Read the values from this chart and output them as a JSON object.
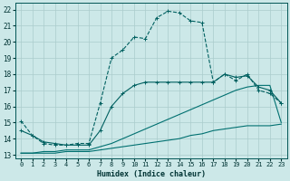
{
  "xlabel": "Humidex (Indice chaleur)",
  "background_color": "#cce8e8",
  "grid_color": "#aacccc",
  "line_color_dark": "#006060",
  "line_color_mid": "#007070",
  "xlim": [
    -0.5,
    23.5
  ],
  "ylim": [
    12.8,
    22.4
  ],
  "xticks": [
    0,
    1,
    2,
    3,
    4,
    5,
    6,
    7,
    8,
    9,
    10,
    11,
    12,
    13,
    14,
    15,
    16,
    17,
    18,
    19,
    20,
    21,
    22,
    23
  ],
  "yticks": [
    13,
    14,
    15,
    16,
    17,
    18,
    19,
    20,
    21,
    22
  ],
  "curve1_x": [
    0,
    1,
    2,
    3,
    4,
    5,
    6,
    7,
    8,
    9,
    10,
    11,
    12,
    13,
    14,
    15,
    16,
    17,
    18,
    19,
    20,
    21,
    22,
    23
  ],
  "curve1_y": [
    15.1,
    14.2,
    13.7,
    13.6,
    13.6,
    13.7,
    13.7,
    16.2,
    19.0,
    19.5,
    20.3,
    20.2,
    21.5,
    21.9,
    21.8,
    21.3,
    21.2,
    17.5,
    18.0,
    17.6,
    18.0,
    17.0,
    16.8,
    16.2
  ],
  "curve2_x": [
    0,
    1,
    2,
    3,
    4,
    5,
    6,
    7,
    8,
    9,
    10,
    11,
    12,
    13,
    14,
    15,
    16,
    17,
    18,
    19,
    20,
    21,
    22,
    23
  ],
  "curve2_y": [
    14.5,
    14.2,
    13.8,
    13.7,
    13.6,
    13.6,
    13.6,
    14.5,
    16.0,
    16.8,
    17.3,
    17.5,
    17.5,
    17.5,
    17.5,
    17.5,
    17.5,
    17.5,
    18.0,
    17.8,
    17.9,
    17.2,
    17.0,
    16.2
  ],
  "curve3_x": [
    0,
    1,
    2,
    3,
    4,
    5,
    6,
    7,
    8,
    9,
    10,
    11,
    12,
    13,
    14,
    15,
    16,
    17,
    18,
    19,
    20,
    21,
    22,
    23
  ],
  "curve3_y": [
    13.1,
    13.1,
    13.2,
    13.2,
    13.3,
    13.3,
    13.3,
    13.5,
    13.7,
    14.0,
    14.3,
    14.6,
    14.9,
    15.2,
    15.5,
    15.8,
    16.1,
    16.4,
    16.7,
    17.0,
    17.2,
    17.3,
    17.3,
    15.0
  ],
  "curve4_x": [
    0,
    1,
    2,
    3,
    4,
    5,
    6,
    7,
    8,
    9,
    10,
    11,
    12,
    13,
    14,
    15,
    16,
    17,
    18,
    19,
    20,
    21,
    22,
    23
  ],
  "curve4_y": [
    13.1,
    13.1,
    13.1,
    13.1,
    13.2,
    13.2,
    13.2,
    13.3,
    13.4,
    13.5,
    13.6,
    13.7,
    13.8,
    13.9,
    14.0,
    14.2,
    14.3,
    14.5,
    14.6,
    14.7,
    14.8,
    14.8,
    14.8,
    14.9
  ]
}
